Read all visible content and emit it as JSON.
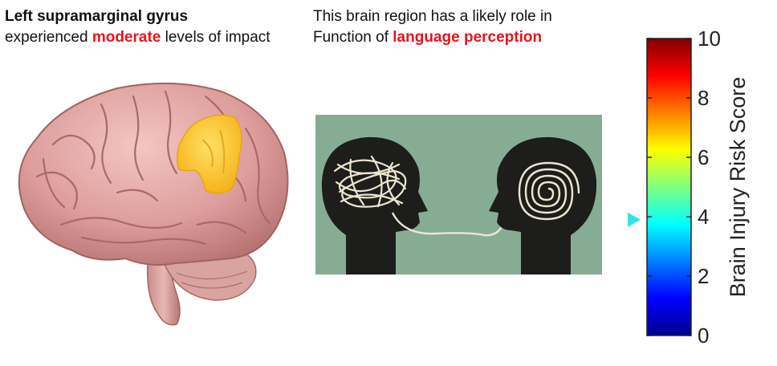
{
  "region": {
    "name": "Left supramarginal gyrus",
    "prefix": "experienced",
    "severity": "moderate",
    "suffix": "levels of impact"
  },
  "role": {
    "line1": "This brain region has a likely role in",
    "prefix": "Function of",
    "function": "language perception"
  },
  "colors": {
    "highlight_text": "#e8141c",
    "region_highlight": "#ffc72c",
    "panel_bg": "#86ad93",
    "head": "#1d1d1b",
    "line": "#ece6d0",
    "marker": "#35e3e3"
  },
  "chart_data": {
    "type": "colorbar",
    "ylabel": "Brain Injury Risk Score",
    "ylim": [
      0,
      10
    ],
    "ticks": [
      "0",
      "2",
      "4",
      "6",
      "8",
      "10"
    ],
    "marker_value": 3.9,
    "colormap": "jet"
  }
}
